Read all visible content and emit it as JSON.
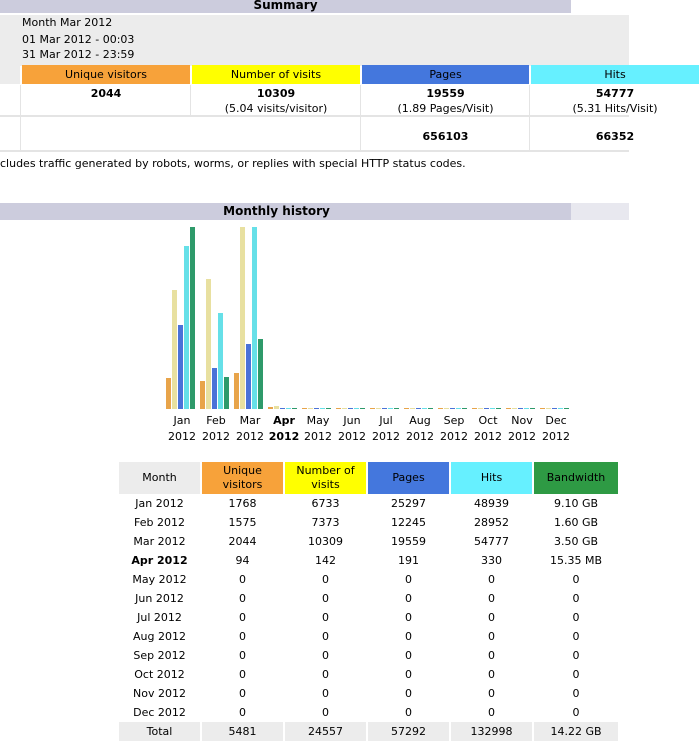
{
  "summary": {
    "title": "Summary",
    "reported_period": "Month Mar 2012",
    "first_visit": "01 Mar 2012 - 00:03",
    "last_visit": "31 Mar 2012 - 23:59",
    "headers": {
      "unique": "Unique visitors",
      "visits": "Number of visits",
      "pages": "Pages",
      "hits": "Hits"
    },
    "viewed": {
      "unique": "2044",
      "visits": "10309",
      "visits_sub": "(5.04 visits/visitor)",
      "pages": "19559",
      "pages_sub": "(1.89 Pages/Visit)",
      "hits": "54777",
      "hits_sub": "(5.31 Hits/Visit)"
    },
    "not_viewed": {
      "pages": "656103",
      "hits": "66352"
    },
    "footnote": "cludes traffic generated by robots, worms, or replies with special HTTP status codes."
  },
  "monthly": {
    "title": "Monthly history",
    "colors": {
      "unique": "#e8a44a",
      "visits": "#e8e0a0",
      "pages": "#4a72d8",
      "hits": "#66e0e8",
      "bandwidth": "#2e9a6a"
    }
  },
  "chart_data": {
    "type": "bar",
    "categories": [
      "Jan 2012",
      "Feb 2012",
      "Mar 2012",
      "Apr 2012",
      "May 2012",
      "Jun 2012",
      "Jul 2012",
      "Aug 2012",
      "Sep 2012",
      "Oct 2012",
      "Nov 2012",
      "Dec 2012"
    ],
    "current": "Apr 2012",
    "series": [
      {
        "name": "Unique visitors",
        "values": [
          1768,
          1575,
          2044,
          94,
          0,
          0,
          0,
          0,
          0,
          0,
          0,
          0
        ]
      },
      {
        "name": "Number of visits",
        "values": [
          6733,
          7373,
          10309,
          142,
          0,
          0,
          0,
          0,
          0,
          0,
          0,
          0
        ]
      },
      {
        "name": "Pages",
        "values": [
          25297,
          12245,
          19559,
          191,
          0,
          0,
          0,
          0,
          0,
          0,
          0,
          0
        ]
      },
      {
        "name": "Hits",
        "values": [
          48939,
          28952,
          54777,
          330,
          0,
          0,
          0,
          0,
          0,
          0,
          0,
          0
        ]
      },
      {
        "name": "Bandwidth",
        "values": [
          9.1,
          1.6,
          3.5,
          0.015,
          0,
          0,
          0,
          0,
          0,
          0,
          0,
          0
        ]
      }
    ]
  },
  "table": {
    "headers": {
      "month": "Month",
      "unique_l1": "Unique",
      "unique_l2": "visitors",
      "visits_l1": "Number of",
      "visits_l2": "visits",
      "pages": "Pages",
      "hits": "Hits",
      "bandwidth": "Bandwidth"
    },
    "rows": [
      {
        "month": "Jan 2012",
        "unique": "1768",
        "visits": "6733",
        "pages": "25297",
        "hits": "48939",
        "bw": "9.10 GB"
      },
      {
        "month": "Feb 2012",
        "unique": "1575",
        "visits": "7373",
        "pages": "12245",
        "hits": "28952",
        "bw": "1.60 GB"
      },
      {
        "month": "Mar 2012",
        "unique": "2044",
        "visits": "10309",
        "pages": "19559",
        "hits": "54777",
        "bw": "3.50 GB"
      },
      {
        "month": "Apr 2012",
        "unique": "94",
        "visits": "142",
        "pages": "191",
        "hits": "330",
        "bw": "15.35 MB"
      },
      {
        "month": "May 2012",
        "unique": "0",
        "visits": "0",
        "pages": "0",
        "hits": "0",
        "bw": "0"
      },
      {
        "month": "Jun 2012",
        "unique": "0",
        "visits": "0",
        "pages": "0",
        "hits": "0",
        "bw": "0"
      },
      {
        "month": "Jul 2012",
        "unique": "0",
        "visits": "0",
        "pages": "0",
        "hits": "0",
        "bw": "0"
      },
      {
        "month": "Aug 2012",
        "unique": "0",
        "visits": "0",
        "pages": "0",
        "hits": "0",
        "bw": "0"
      },
      {
        "month": "Sep 2012",
        "unique": "0",
        "visits": "0",
        "pages": "0",
        "hits": "0",
        "bw": "0"
      },
      {
        "month": "Oct 2012",
        "unique": "0",
        "visits": "0",
        "pages": "0",
        "hits": "0",
        "bw": "0"
      },
      {
        "month": "Nov 2012",
        "unique": "0",
        "visits": "0",
        "pages": "0",
        "hits": "0",
        "bw": "0"
      },
      {
        "month": "Dec 2012",
        "unique": "0",
        "visits": "0",
        "pages": "0",
        "hits": "0",
        "bw": "0"
      }
    ],
    "total": {
      "month": "Total",
      "unique": "5481",
      "visits": "24557",
      "pages": "57292",
      "hits": "132998",
      "bw": "14.22 GB"
    }
  }
}
